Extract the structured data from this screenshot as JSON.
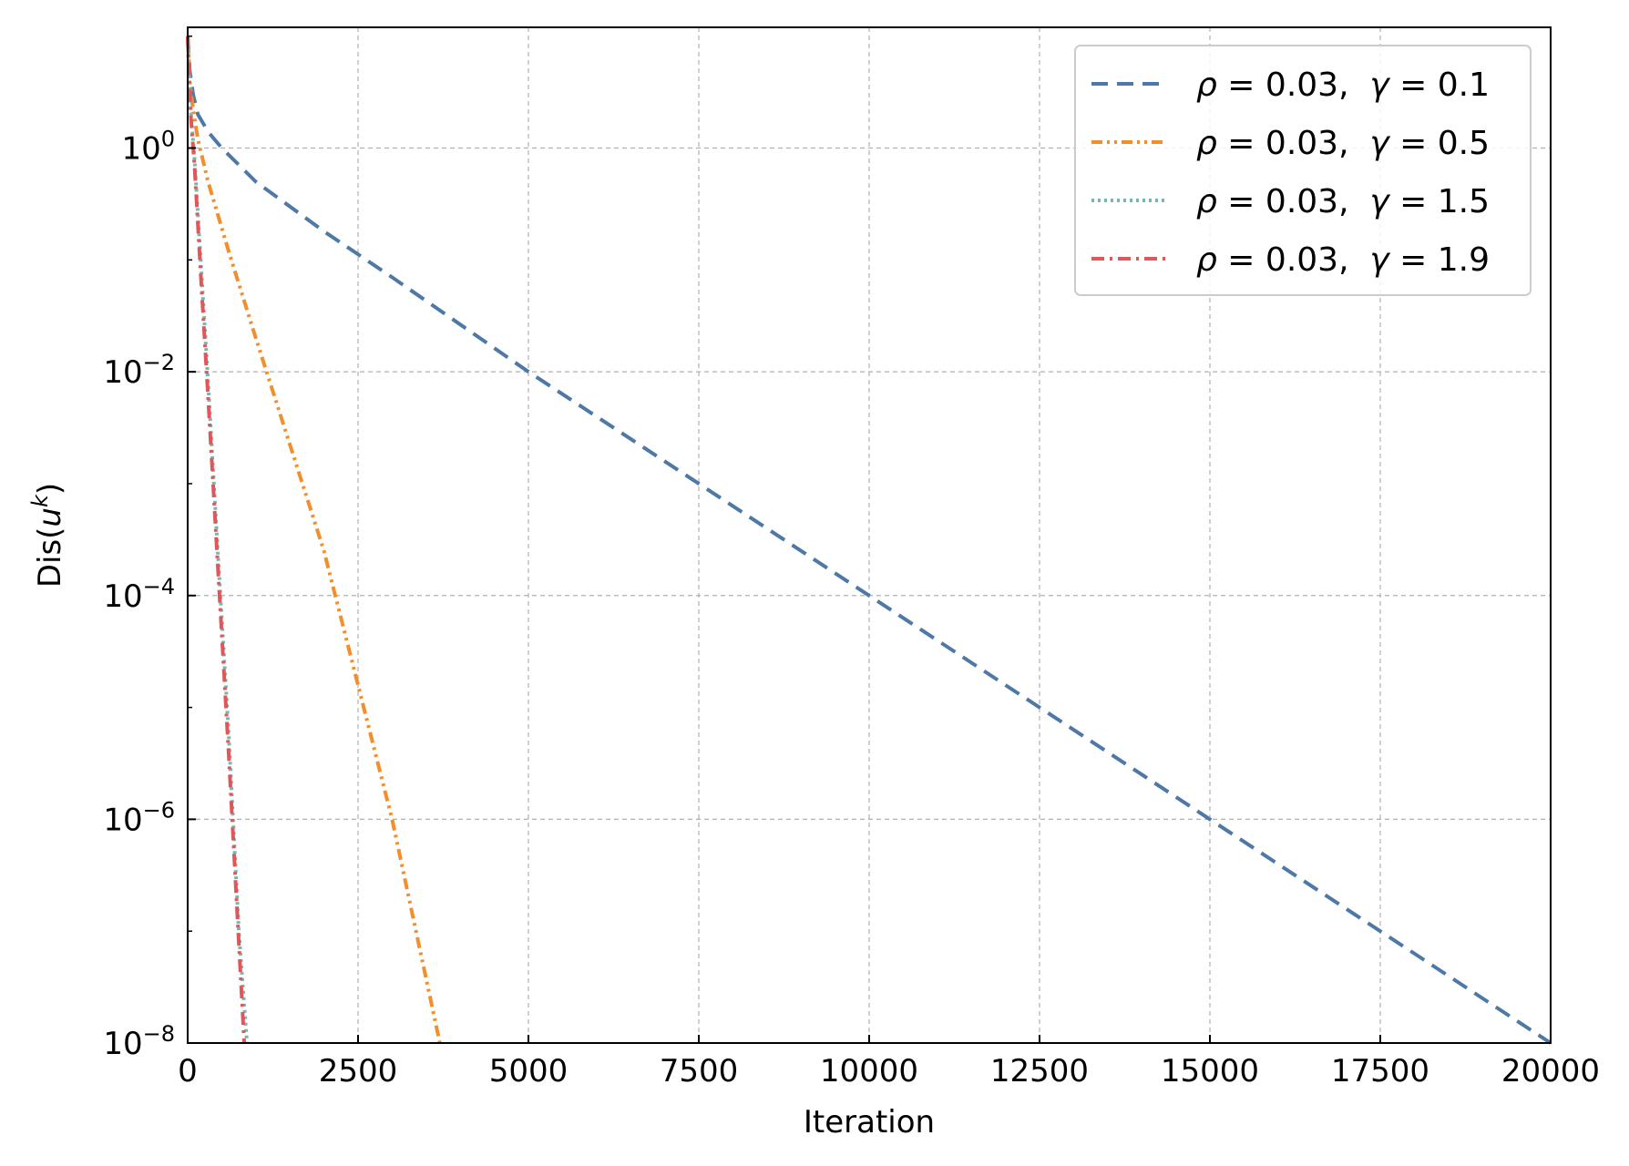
{
  "chart_data": {
    "type": "line",
    "title": "",
    "xlabel": "Iteration",
    "ylabel": "Dis(u^k)",
    "ylabel_base": "Dis(",
    "ylabel_var": "u",
    "ylabel_sup": "k",
    "ylabel_close": ")",
    "xlim": [
      0,
      20000
    ],
    "ylim": [
      1e-08,
      12
    ],
    "yscale": "log",
    "grid": true,
    "legend_position": "top-right",
    "x_ticks": [
      0,
      2500,
      5000,
      7500,
      10000,
      12500,
      15000,
      17500,
      20000
    ],
    "x_tick_labels": [
      "0",
      "2500",
      "5000",
      "7500",
      "10000",
      "12500",
      "15000",
      "17500",
      "20000"
    ],
    "y_ticks": [
      1,
      0.01,
      0.0001,
      1e-06,
      1e-08
    ],
    "y_tick_labels": [
      {
        "base": "10",
        "exp": "0"
      },
      {
        "base": "10",
        "exp": "−2"
      },
      {
        "base": "10",
        "exp": "−4"
      },
      {
        "base": "10",
        "exp": "−6"
      },
      {
        "base": "10",
        "exp": "−8"
      }
    ],
    "series": [
      {
        "name": "ρ = 0.03,  γ = 0.1",
        "legend": {
          "rho_sym": "ρ",
          "rho_val": " = 0.03,  ",
          "gamma_sym": "γ",
          "gamma_val": " = 0.1"
        },
        "color": "#4e79a7",
        "dash": "dashed",
        "x": [
          0,
          30,
          80,
          150,
          300,
          500,
          1000,
          2000,
          3000,
          5000,
          10000,
          15000,
          20000
        ],
        "y": [
          10,
          5,
          3,
          2,
          1.4,
          1.0,
          0.5,
          0.18,
          0.07,
          0.01,
          0.0001,
          1e-06,
          1e-08
        ]
      },
      {
        "name": "ρ = 0.03,  γ = 0.5",
        "legend": {
          "rho_sym": "ρ",
          "rho_val": " = 0.03,  ",
          "gamma_sym": "γ",
          "gamma_val": " = 0.5"
        },
        "color": "#f28e2b",
        "dash": "dashdotdot",
        "x": [
          0,
          30,
          80,
          150,
          300,
          600,
          1000,
          2000,
          3000,
          3700
        ],
        "y": [
          10,
          4,
          2.2,
          1.2,
          0.5,
          0.12,
          0.02,
          0.00025,
          1e-06,
          1e-08
        ]
      },
      {
        "name": "ρ = 0.03,  γ = 1.5",
        "legend": {
          "rho_sym": "ρ",
          "rho_val": " = 0.03,  ",
          "gamma_sym": "γ",
          "gamma_val": " = 1.5"
        },
        "color": "#76b7b2",
        "dash": "dotted",
        "x": [
          0,
          20,
          50,
          100,
          200,
          300,
          450,
          600,
          750,
          870
        ],
        "y": [
          10,
          5,
          2,
          0.8,
          0.08,
          0.008,
          0.0002,
          6e-06,
          1e-07,
          1e-08
        ]
      },
      {
        "name": "ρ = 0.03,  γ = 1.9",
        "legend": {
          "rho_sym": "ρ",
          "rho_val": " = 0.03,  ",
          "gamma_sym": "γ",
          "gamma_val": " = 1.9"
        },
        "color": "#e15759",
        "dash": "dashdot",
        "x": [
          0,
          20,
          50,
          100,
          200,
          300,
          450,
          600,
          750,
          830
        ],
        "y": [
          10,
          4.5,
          1.8,
          0.7,
          0.06,
          0.006,
          0.00015,
          4e-06,
          8e-08,
          1e-08
        ]
      }
    ]
  }
}
